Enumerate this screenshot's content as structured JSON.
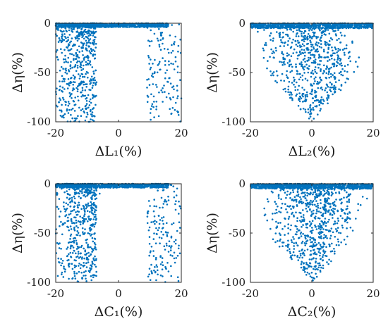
{
  "chart_data": [
    {
      "type": "scatter",
      "panel": "top-left",
      "xlabel": "ΔL₁(%)",
      "ylabel": "Δη(%)",
      "xlim": [
        -20,
        20
      ],
      "ylim": [
        -100,
        0
      ],
      "xticks": [
        -20,
        0,
        20
      ],
      "yticks": [
        0,
        -50,
        -100
      ],
      "color": "#0072BD",
      "n_points": 1400,
      "pattern": "left-heavy",
      "note_points": [
        {
          "x": -18,
          "y": -95
        },
        {
          "x": -15,
          "y": -60
        },
        {
          "x": -12,
          "y": -40
        },
        {
          "x": -10,
          "y": -20
        },
        {
          "x": -8,
          "y": -10
        },
        {
          "x": 14,
          "y": -70
        },
        {
          "x": 16,
          "y": -30
        },
        {
          "x": 19,
          "y": -90
        }
      ]
    },
    {
      "type": "scatter",
      "panel": "top-right",
      "xlabel": "ΔL₂(%)",
      "ylabel": "Δη(%)",
      "xlim": [
        -20,
        20
      ],
      "ylim": [
        -100,
        0
      ],
      "xticks": [
        -20,
        0,
        20
      ],
      "yticks": [
        0,
        -50,
        -100
      ],
      "color": "#0072BD",
      "n_points": 1400,
      "pattern": "centered",
      "note_points": [
        {
          "x": -15,
          "y": -20
        },
        {
          "x": -5,
          "y": -60
        },
        {
          "x": -2,
          "y": -90
        },
        {
          "x": 0,
          "y": -40
        },
        {
          "x": 5,
          "y": -70
        },
        {
          "x": 12,
          "y": -30
        }
      ]
    },
    {
      "type": "scatter",
      "panel": "bottom-left",
      "xlabel": "ΔC₁(%)",
      "ylabel": "Δη(%)",
      "xlim": [
        -20,
        20
      ],
      "ylim": [
        -100,
        0
      ],
      "xticks": [
        -20,
        0,
        20
      ],
      "yticks": [
        0,
        -50,
        -100
      ],
      "color": "#0072BD",
      "n_points": 1400,
      "pattern": "left-heavy",
      "note_points": [
        {
          "x": -18,
          "y": -90
        },
        {
          "x": -14,
          "y": -55
        },
        {
          "x": -11,
          "y": -25
        },
        {
          "x": -6,
          "y": -10
        },
        {
          "x": 12,
          "y": -45
        },
        {
          "x": 18,
          "y": -80
        }
      ]
    },
    {
      "type": "scatter",
      "panel": "bottom-right",
      "xlabel": "ΔC₂(%)",
      "ylabel": "Δη(%)",
      "xlim": [
        -20,
        20
      ],
      "ylim": [
        -100,
        0
      ],
      "xticks": [
        -20,
        0,
        20
      ],
      "yticks": [
        0,
        -50,
        -100
      ],
      "color": "#0072BD",
      "n_points": 1400,
      "pattern": "centered",
      "note_points": [
        {
          "x": -12,
          "y": -30
        },
        {
          "x": -4,
          "y": -75
        },
        {
          "x": 0,
          "y": -95
        },
        {
          "x": 3,
          "y": -50
        },
        {
          "x": 10,
          "y": -35
        },
        {
          "x": 18,
          "y": -15
        }
      ]
    }
  ]
}
